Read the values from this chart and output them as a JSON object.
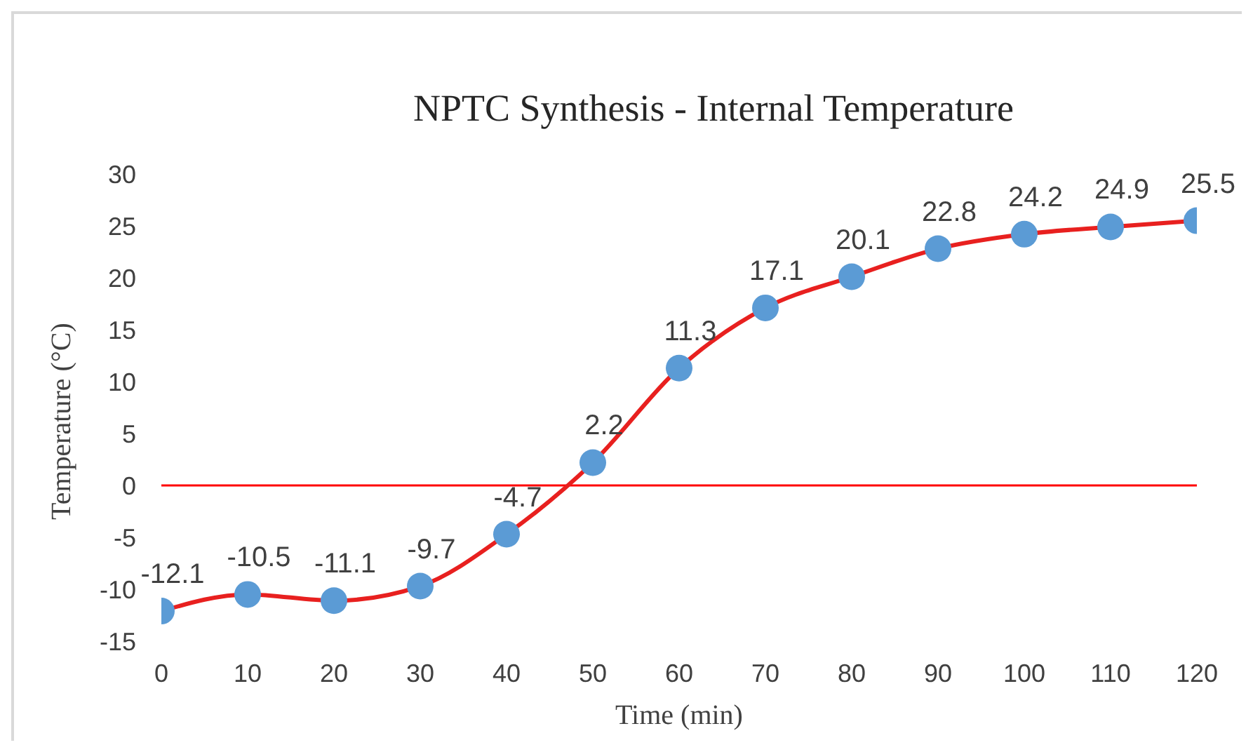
{
  "chart_data": {
    "type": "line",
    "title": "NPTC Synthesis - Internal Temperature",
    "xlabel": "Time (min)",
    "ylabel": "Temperature (°C)",
    "x": [
      0,
      10,
      20,
      30,
      40,
      50,
      60,
      70,
      80,
      90,
      100,
      110,
      120
    ],
    "series": [
      {
        "color": "#e8201f",
        "colors": [
          "#5b9bd5",
          "#5b9bd5",
          "#5b9bd5",
          "#5b9bd5",
          "#5b9bd5",
          "#5b9bd5",
          "#5b9bd5",
          "#5b9bd5",
          "#5b9bd5",
          "#5b9bd5",
          "#5b9bd5",
          "#5b9bd5",
          "#5b9bd5"
        ],
        "values": [
          -12.1,
          -10.5,
          -11.1,
          -9.7,
          -4.7,
          2.2,
          11.3,
          17.1,
          20.1,
          22.8,
          24.2,
          24.9,
          25.5
        ]
      }
    ],
    "xlim": [
      0,
      120
    ],
    "xticks": [
      0,
      10,
      20,
      30,
      40,
      50,
      60,
      70,
      80,
      90,
      100,
      110,
      120
    ],
    "ylim": [
      -15,
      30
    ],
    "yticks": [
      -15,
      -10,
      -5,
      0,
      5,
      10,
      15,
      20,
      25,
      30
    ],
    "ref_lines": [
      {
        "axis": "y",
        "value": 0,
        "color": "#ff0000"
      }
    ],
    "data_labels": true,
    "grid": false,
    "marker": "circle",
    "line_style": "solid"
  }
}
